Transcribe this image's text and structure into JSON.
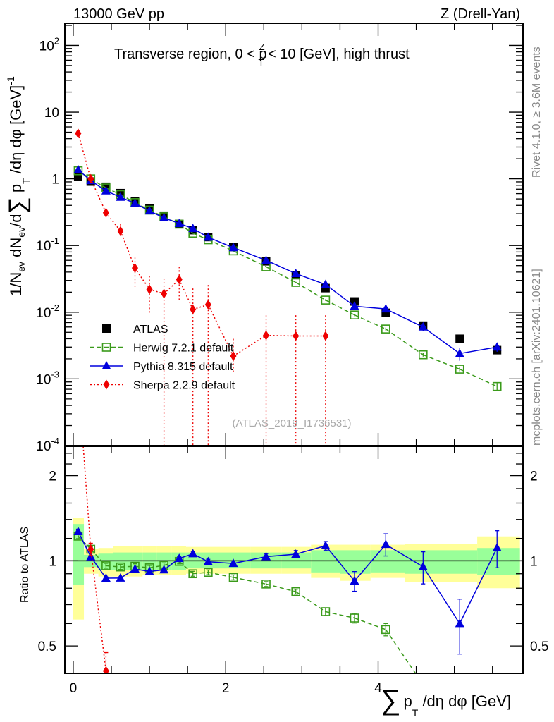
{
  "header": {
    "left": "13000 GeV pp",
    "right": "Z (Drell-Yan)"
  },
  "side_labels": {
    "top": "Rivet 4.1.0, ≥ 3.6M events",
    "bottom": "mcplots.cern.ch [arXiv:2401.10621]"
  },
  "watermark": "(ATLAS_2019_I1736531)",
  "chart_data": {
    "type": "line",
    "title": "Transverse region, 0 < p_T^Z < 10 [GeV], high thrust",
    "title_parts": {
      "a": "Transverse region, 0 < p",
      "sup": "Z",
      "sub": "T",
      "b": " < 10 [GeV], high thrust"
    },
    "xlabel": {
      "sum": "∑",
      "p": "p",
      "sub": "T",
      "rest": " /dη dφ [GeV]"
    },
    "ylabel": {
      "a": "1/N",
      "sub1": "ev",
      "b": " dN",
      "sub2": "ev",
      "c": "/d",
      "sum": "∑",
      "d": " p",
      "sub3": "T",
      "e": " /dη dφ  [GeV]",
      "sup": "-1"
    },
    "ratio_ylabel": "Ratio to ATLAS",
    "xlim": [
      -0.11,
      5.9
    ],
    "ylim": [
      0.0001,
      215
    ],
    "ratio_ylim": [
      0.4,
      2.54
    ],
    "yscale": "log",
    "xticks": [
      "0",
      "2",
      "4"
    ],
    "xtick_values": [
      0,
      2,
      4
    ],
    "yticks": [
      {
        "base": "10",
        "exp": "2",
        "v": 100
      },
      {
        "base": "10",
        "exp": "",
        "v": 10
      },
      {
        "base": "1",
        "exp": "",
        "v": 1
      },
      {
        "base": "10",
        "exp": "-1",
        "v": 0.1
      },
      {
        "base": "10",
        "exp": "-2",
        "v": 0.01
      },
      {
        "base": "10",
        "exp": "-3",
        "v": 0.001
      },
      {
        "base": "10",
        "exp": "-4",
        "v": 0.0001
      }
    ],
    "ratio_yticks": [
      {
        "label": "2",
        "v": 2
      },
      {
        "label": "1",
        "v": 1
      },
      {
        "label": "0.5",
        "v": 0.5
      }
    ],
    "x": [
      0.065,
      0.23,
      0.43,
      0.62,
      0.81,
      1.0,
      1.19,
      1.39,
      1.57,
      1.77,
      2.1,
      2.53,
      2.92,
      3.31,
      3.69,
      4.1,
      4.59,
      5.07,
      5.56
    ],
    "bin_edges": [
      0,
      0.14,
      0.33,
      0.52,
      0.72,
      0.91,
      1.1,
      1.29,
      1.48,
      1.67,
      1.87,
      2.33,
      2.73,
      3.12,
      3.5,
      3.9,
      4.35,
      4.85,
      5.3,
      5.86
    ],
    "band_total": [
      [
        0.62,
        1.42
      ],
      [
        0.9,
        1.1
      ],
      [
        0.88,
        1.11
      ],
      [
        0.88,
        1.13
      ],
      [
        0.88,
        1.13
      ],
      [
        0.89,
        1.13
      ],
      [
        0.89,
        1.13
      ],
      [
        0.89,
        1.13
      ],
      [
        0.9,
        1.12
      ],
      [
        0.9,
        1.12
      ],
      [
        0.9,
        1.12
      ],
      [
        0.9,
        1.12
      ],
      [
        0.9,
        1.12
      ],
      [
        0.87,
        1.14
      ],
      [
        0.85,
        1.14
      ],
      [
        0.87,
        1.14
      ],
      [
        0.84,
        1.15
      ],
      [
        0.84,
        1.15
      ],
      [
        0.8,
        1.22
      ]
    ],
    "band_stat": [
      [
        0.82,
        1.35
      ],
      [
        0.95,
        1.05
      ],
      [
        0.93,
        1.06
      ],
      [
        0.93,
        1.07
      ],
      [
        0.93,
        1.07
      ],
      [
        0.93,
        1.07
      ],
      [
        0.93,
        1.07
      ],
      [
        0.93,
        1.07
      ],
      [
        0.94,
        1.07
      ],
      [
        0.94,
        1.07
      ],
      [
        0.94,
        1.07
      ],
      [
        0.94,
        1.07
      ],
      [
        0.94,
        1.07
      ],
      [
        0.91,
        1.09
      ],
      [
        0.9,
        1.09
      ],
      [
        0.91,
        1.09
      ],
      [
        0.9,
        1.09
      ],
      [
        0.9,
        1.09
      ],
      [
        0.89,
        1.11
      ]
    ],
    "legend_position": "lower-left",
    "series": [
      {
        "name": "ATLAS",
        "color": "#000000",
        "marker": "square-filled",
        "values": [
          1.08,
          0.91,
          0.76,
          0.61,
          0.46,
          0.36,
          0.28,
          0.21,
          0.17,
          0.134,
          0.095,
          0.058,
          0.036,
          0.023,
          0.0145,
          0.0098,
          0.0063,
          0.004,
          0.0027
        ]
      },
      {
        "name": "Herwig 7.2.1 default",
        "color": "#3a9a1a",
        "marker": "square-open",
        "line": "dashed",
        "values": [
          1.32,
          1.0,
          0.73,
          0.58,
          0.44,
          0.34,
          0.27,
          0.209,
          0.153,
          0.122,
          0.083,
          0.048,
          0.028,
          0.0152,
          0.0091,
          0.0056,
          0.0023,
          0.0014,
          0.00077
        ],
        "rel_err": [
          0.02,
          0.02,
          0.02,
          0.02,
          0.02,
          0.02,
          0.02,
          0.02,
          0.02,
          0.02,
          0.02,
          0.02,
          0.02,
          0.03,
          0.04,
          0.05,
          0.06,
          0.07,
          0.12
        ]
      },
      {
        "name": "Pythia 8.315 default",
        "color": "#0000dd",
        "marker": "triangle",
        "line": "solid",
        "values": [
          1.37,
          0.94,
          0.66,
          0.53,
          0.43,
          0.33,
          0.26,
          0.214,
          0.18,
          0.133,
          0.093,
          0.06,
          0.038,
          0.026,
          0.0123,
          0.0112,
          0.006,
          0.0024,
          0.003
        ],
        "rel_err": [
          0.02,
          0.01,
          0.01,
          0.01,
          0.01,
          0.01,
          0.01,
          0.015,
          0.02,
          0.02,
          0.02,
          0.025,
          0.03,
          0.035,
          0.08,
          0.09,
          0.13,
          0.22,
          0.15
        ]
      },
      {
        "name": "Sherpa 2.2.9 default",
        "color": "#ee0000",
        "marker": "diamond",
        "line": "dotted",
        "values": [
          4.8,
          1.0,
          0.31,
          0.165,
          0.046,
          0.022,
          0.019,
          0.031,
          0.011,
          0.013,
          0.0022,
          0.0045,
          0.0044,
          0.0044,
          null,
          null,
          null,
          null,
          null
        ],
        "err_lo": [
          4.4,
          0.95,
          0.26,
          0.13,
          0.024,
          0.0094,
          1e-05,
          0.0147,
          1e-05,
          1e-05,
          0.0012,
          1e-05,
          1e-05,
          1e-05,
          null,
          null,
          null,
          null,
          null
        ],
        "err_hi": [
          5.2,
          1.05,
          0.36,
          0.21,
          0.066,
          0.035,
          0.032,
          0.048,
          0.0227,
          0.0256,
          0.004,
          0.009,
          0.009,
          0.009,
          null,
          null,
          null,
          null,
          null
        ]
      }
    ]
  }
}
